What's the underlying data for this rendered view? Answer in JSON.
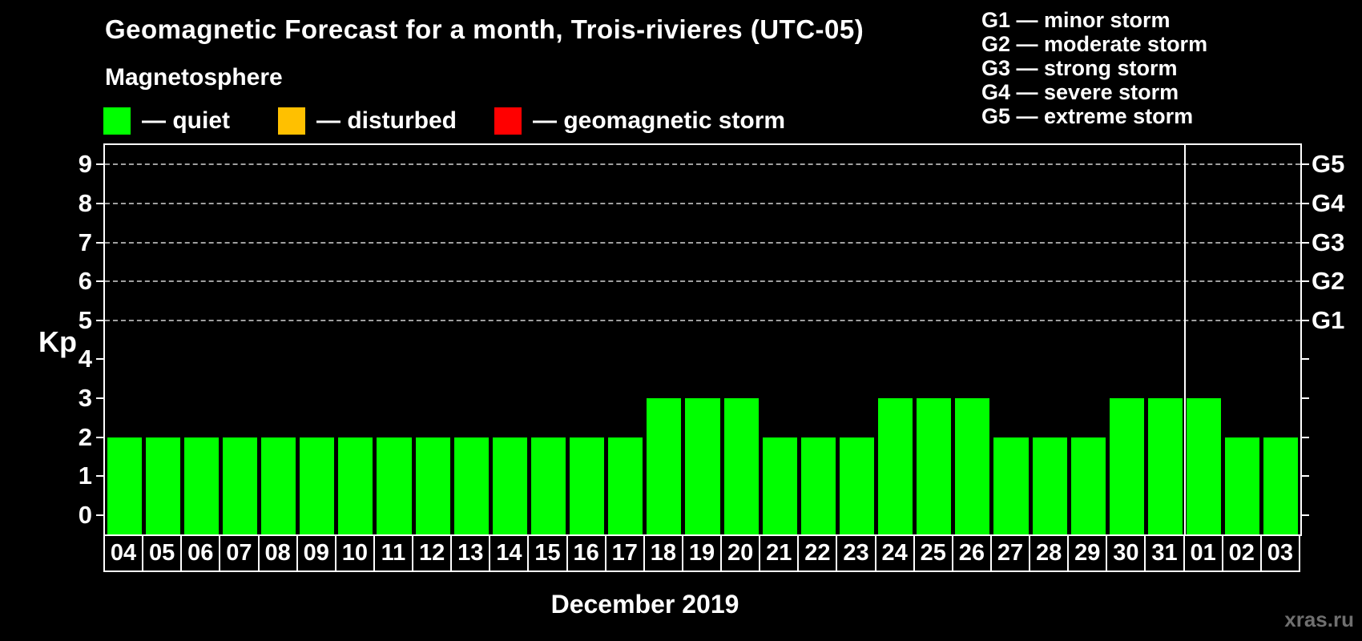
{
  "header": {
    "title": "Geomagnetic Forecast for a month, Trois-rivieres (UTC-05)",
    "subtitle": "Magnetosphere"
  },
  "legend": {
    "items": [
      {
        "name": "quiet",
        "label": "— quiet",
        "color": "#00ff00"
      },
      {
        "name": "disturbed",
        "label": "— disturbed",
        "color": "#ffc000"
      },
      {
        "name": "geomagnetic-storm",
        "label": "— geomagnetic storm",
        "color": "#ff0000"
      }
    ]
  },
  "g_legend": [
    "G1 — minor storm",
    "G2 — moderate storm",
    "G3 — strong storm",
    "G4 — severe storm",
    "G5 — extreme storm"
  ],
  "chart_data": {
    "type": "bar",
    "title": "Geomagnetic Forecast for a month, Trois-rivieres (UTC-05)",
    "xlabel": "December 2019",
    "ylabel": "Kp",
    "categories": [
      "04",
      "05",
      "06",
      "07",
      "08",
      "09",
      "10",
      "11",
      "12",
      "13",
      "14",
      "15",
      "16",
      "17",
      "18",
      "19",
      "20",
      "21",
      "22",
      "23",
      "24",
      "25",
      "26",
      "27",
      "28",
      "29",
      "30",
      "31",
      "01",
      "02",
      "03"
    ],
    "values": [
      2,
      2,
      2,
      2,
      2,
      2,
      2,
      2,
      2,
      2,
      2,
      2,
      2,
      2,
      3,
      3,
      3,
      2,
      2,
      2,
      3,
      3,
      3,
      2,
      2,
      2,
      3,
      3,
      3,
      2,
      2
    ],
    "bar_color": "#00ff00",
    "ylim": [
      -0.5,
      9.5
    ],
    "yticks": [
      0,
      1,
      2,
      3,
      4,
      5,
      6,
      7,
      8,
      9
    ],
    "gridlines_at_kp": [
      5,
      6,
      7,
      8,
      9
    ],
    "right_axis": [
      {
        "label": "G1",
        "kp": 5
      },
      {
        "label": "G2",
        "kp": 6
      },
      {
        "label": "G3",
        "kp": 7
      },
      {
        "label": "G4",
        "kp": 8
      },
      {
        "label": "G5",
        "kp": 9
      }
    ],
    "month_boundary_after": "31",
    "grid": "dashed horizontal lines at storm levels only",
    "legend_position": "top-left and top-right"
  },
  "watermark": "xras.ru",
  "colors": {
    "background": "#000000",
    "bar_quiet": "#00ff00",
    "bar_disturbed": "#ffc000",
    "bar_storm": "#ff0000",
    "axis": "#ffffff",
    "gridline": "#a0a0a0",
    "watermark": "#6f6f6f"
  }
}
